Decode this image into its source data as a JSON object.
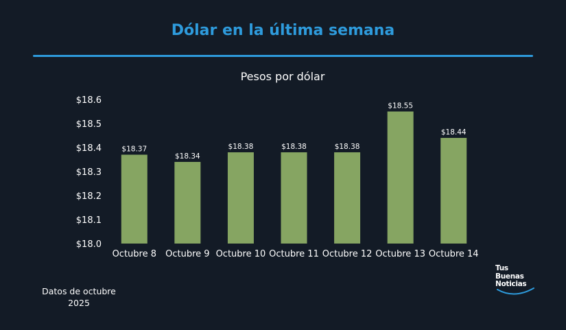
{
  "page": {
    "title": "Dólar en la última semana",
    "footnote_line1": "Datos de octubre",
    "footnote_line2": "2025",
    "logo": {
      "line1": "Tus",
      "line2": "Buenas",
      "line3": "Noticias"
    },
    "colors": {
      "background": "#131b26",
      "accent": "#2e9bdc",
      "bar": "#86a562",
      "text": "#ffffff"
    }
  },
  "chart_data": {
    "type": "bar",
    "title": "Pesos por dólar",
    "xlabel": "",
    "ylabel": "",
    "categories": [
      "Octubre 8",
      "Octubre 9",
      "Octubre 10",
      "Octubre 11",
      "Octubre 12",
      "Octubre 13",
      "Octubre 14"
    ],
    "values": [
      18.37,
      18.34,
      18.38,
      18.38,
      18.38,
      18.55,
      18.44
    ],
    "data_labels": [
      "$18.37",
      "$18.34",
      "$18.38",
      "$18.38",
      "$18.38",
      "$18.55",
      "$18.44"
    ],
    "ylim": [
      18.0,
      18.6
    ],
    "yticks": [
      18.0,
      18.1,
      18.2,
      18.3,
      18.4,
      18.5,
      18.6
    ],
    "ytick_labels": [
      "$18.0",
      "$18.1",
      "$18.2",
      "$18.3",
      "$18.4",
      "$18.5",
      "$18.6"
    ],
    "grid": false,
    "legend": "none"
  }
}
